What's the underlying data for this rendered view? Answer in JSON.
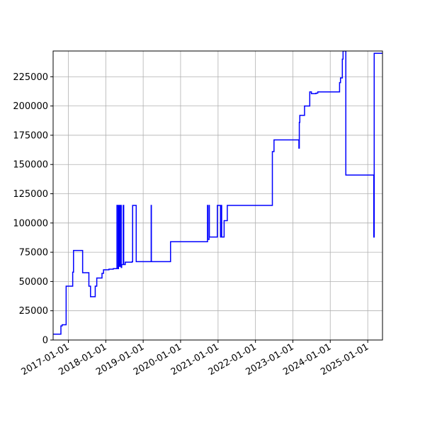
{
  "chart_data": {
    "type": "line",
    "title": "",
    "xlabel": "",
    "ylabel": "",
    "xlim": [
      "2016-08-05",
      "2025-05-25"
    ],
    "ylim": [
      0,
      247000
    ],
    "grid": true,
    "x_ticks": [
      "2017-01-01",
      "2018-01-01",
      "2019-01-01",
      "2020-01-01",
      "2021-01-01",
      "2022-01-01",
      "2023-01-01",
      "2024-01-01",
      "2025-01-01"
    ],
    "y_ticks": [
      0,
      25000,
      50000,
      75000,
      100000,
      125000,
      150000,
      175000,
      200000,
      225000
    ],
    "y_tick_labels": [
      "0",
      "25000",
      "50000",
      "75000",
      "100000",
      "125000",
      "150000",
      "175000",
      "200000",
      "225000"
    ],
    "series": [
      {
        "name": "",
        "color": "#0000ff",
        "step": "post",
        "x": [
          "2016-08-05",
          "2016-10-20",
          "2016-11-01",
          "2016-12-05",
          "2016-12-10",
          "2017-02-12",
          "2017-02-20",
          "2017-02-25",
          "2017-05-20",
          "2017-05-28",
          "2017-07-20",
          "2017-08-05",
          "2017-09-20",
          "2017-10-05",
          "2017-10-25",
          "2017-11-25",
          "2017-12-10",
          "2018-02-01",
          "2018-03-15",
          "2018-04-20",
          "2018-05-01",
          "2018-05-05",
          "2018-05-10",
          "2018-05-15",
          "2018-05-20",
          "2018-05-25",
          "2018-06-01",
          "2018-06-05",
          "2018-06-15",
          "2018-06-20",
          "2018-06-25",
          "2018-07-01",
          "2018-07-05",
          "2018-07-10",
          "2018-09-15",
          "2018-09-20",
          "2018-10-25",
          "2018-11-10",
          "2019-01-01",
          "2019-03-20",
          "2019-03-22",
          "2019-09-25",
          "2019-09-27",
          "2019-12-10",
          "2020-09-20",
          "2020-09-22",
          "2020-10-05",
          "2020-10-08",
          "2020-12-20",
          "2020-12-25",
          "2021-01-25",
          "2021-01-28",
          "2021-02-05",
          "2021-03-01",
          "2021-04-01",
          "2022-01-01",
          "2022-01-10",
          "2022-03-15",
          "2022-04-25",
          "2022-04-28",
          "2022-06-15",
          "2022-06-20",
          "2022-07-01",
          "2023-03-01",
          "2023-03-05",
          "2023-03-10",
          "2023-04-15",
          "2023-04-25",
          "2023-06-15",
          "2023-07-01",
          "2023-08-15",
          "2023-09-01",
          "2024-04-01",
          "2024-04-10",
          "2024-04-20",
          "2024-04-28",
          "2024-05-05",
          "2024-06-01",
          "2025-03-01",
          "2025-03-05",
          "2025-05-25"
        ],
        "y": [
          5000,
          12000,
          13000,
          13000,
          46000,
          58000,
          76500,
          76500,
          57500,
          57500,
          46000,
          37000,
          46000,
          53000,
          53000,
          57000,
          60000,
          60500,
          61000,
          115000,
          61000,
          115000,
          63000,
          115000,
          63000,
          115000,
          62000,
          64500,
          64500,
          115000,
          64500,
          64500,
          64500,
          66500,
          67000,
          115000,
          67000,
          67000,
          67000,
          115000,
          67000,
          84000,
          84000,
          84000,
          115000,
          86000,
          115000,
          88000,
          88000,
          115000,
          88000,
          115000,
          88000,
          102000,
          115000,
          115000,
          115000,
          115000,
          115000,
          115000,
          161000,
          161000,
          171000,
          164000,
          186000,
          192000,
          192000,
          200000,
          212000,
          210500,
          211000,
          212000,
          220000,
          224000,
          224000,
          240000,
          247000,
          141000,
          88000,
          245000,
          245000
        ]
      }
    ]
  }
}
